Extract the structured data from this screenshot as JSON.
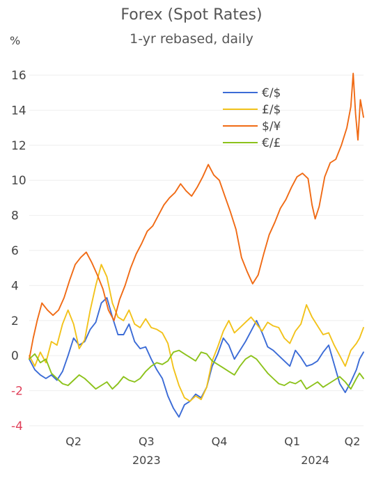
{
  "chart_data": {
    "type": "line",
    "title": "Forex (Spot Rates)",
    "subtitle": "1-yr rebased, daily",
    "ylabel": "%",
    "xlabel": "",
    "ylim": [
      -4,
      16.5
    ],
    "yticks": [
      -4,
      -2,
      0,
      2,
      4,
      6,
      8,
      10,
      12,
      14,
      16
    ],
    "xlim": [
      "2023-03-20",
      "2024-05-15"
    ],
    "xticks": [
      {
        "label": "Q2",
        "date": "2023-05-15"
      },
      {
        "label": "Q3",
        "date": "2023-08-15"
      },
      {
        "label": "Q4",
        "date": "2023-11-15"
      },
      {
        "label": "Q1",
        "date": "2024-02-15"
      },
      {
        "label": "Q2",
        "date": "2024-05-01"
      }
    ],
    "year_labels": [
      {
        "label": "2023",
        "date": "2023-08-15"
      },
      {
        "label": "2024",
        "date": "2024-03-15"
      }
    ],
    "grid": true,
    "legend_position": "top-right",
    "series": [
      {
        "name": "€/$",
        "color": "#3b6bd6",
        "points": [
          [
            "2023-03-20",
            -0.2
          ],
          [
            "2023-03-27",
            -0.8
          ],
          [
            "2023-04-03",
            -1.1
          ],
          [
            "2023-04-10",
            -1.3
          ],
          [
            "2023-04-17",
            -1.1
          ],
          [
            "2023-04-24",
            -1.4
          ],
          [
            "2023-05-01",
            -0.9
          ],
          [
            "2023-05-08",
            0.0
          ],
          [
            "2023-05-15",
            1.0
          ],
          [
            "2023-05-22",
            0.6
          ],
          [
            "2023-05-29",
            0.8
          ],
          [
            "2023-06-05",
            1.5
          ],
          [
            "2023-06-12",
            1.9
          ],
          [
            "2023-06-19",
            3.0
          ],
          [
            "2023-06-26",
            3.3
          ],
          [
            "2023-07-03",
            2.2
          ],
          [
            "2023-07-10",
            1.2
          ],
          [
            "2023-07-17",
            1.2
          ],
          [
            "2023-07-24",
            1.8
          ],
          [
            "2023-07-31",
            0.8
          ],
          [
            "2023-08-07",
            0.4
          ],
          [
            "2023-08-14",
            0.5
          ],
          [
            "2023-08-21",
            -0.2
          ],
          [
            "2023-08-28",
            -0.8
          ],
          [
            "2023-09-04",
            -1.3
          ],
          [
            "2023-09-11",
            -2.3
          ],
          [
            "2023-09-18",
            -3.0
          ],
          [
            "2023-09-25",
            -3.5
          ],
          [
            "2023-10-02",
            -2.8
          ],
          [
            "2023-10-09",
            -2.6
          ],
          [
            "2023-10-16",
            -2.2
          ],
          [
            "2023-10-23",
            -2.4
          ],
          [
            "2023-10-30",
            -1.8
          ],
          [
            "2023-11-06",
            -0.6
          ],
          [
            "2023-11-13",
            0.1
          ],
          [
            "2023-11-20",
            1.0
          ],
          [
            "2023-11-27",
            0.6
          ],
          [
            "2023-12-04",
            -0.2
          ],
          [
            "2023-12-11",
            0.3
          ],
          [
            "2023-12-18",
            0.8
          ],
          [
            "2023-12-25",
            1.4
          ],
          [
            "2024-01-01",
            2.0
          ],
          [
            "2024-01-08",
            1.3
          ],
          [
            "2024-01-15",
            0.5
          ],
          [
            "2024-01-22",
            0.3
          ],
          [
            "2024-01-29",
            0.0
          ],
          [
            "2024-02-05",
            -0.3
          ],
          [
            "2024-02-12",
            -0.6
          ],
          [
            "2024-02-19",
            0.3
          ],
          [
            "2024-02-26",
            -0.1
          ],
          [
            "2024-03-04",
            -0.6
          ],
          [
            "2024-03-11",
            -0.5
          ],
          [
            "2024-03-18",
            -0.3
          ],
          [
            "2024-03-25",
            0.2
          ],
          [
            "2024-04-01",
            0.6
          ],
          [
            "2024-04-08",
            -0.5
          ],
          [
            "2024-04-15",
            -1.6
          ],
          [
            "2024-04-22",
            -2.1
          ],
          [
            "2024-04-29",
            -1.5
          ],
          [
            "2024-05-06",
            -0.8
          ],
          [
            "2024-05-10",
            -0.2
          ],
          [
            "2024-05-15",
            0.2
          ]
        ]
      },
      {
        "name": "£/$",
        "color": "#f2c21a",
        "points": [
          [
            "2023-03-20",
            0.0
          ],
          [
            "2023-03-27",
            -0.6
          ],
          [
            "2023-04-03",
            0.2
          ],
          [
            "2023-04-10",
            -0.4
          ],
          [
            "2023-04-17",
            0.8
          ],
          [
            "2023-04-24",
            0.6
          ],
          [
            "2023-05-01",
            1.8
          ],
          [
            "2023-05-08",
            2.6
          ],
          [
            "2023-05-15",
            1.8
          ],
          [
            "2023-05-22",
            0.4
          ],
          [
            "2023-05-29",
            0.9
          ],
          [
            "2023-06-05",
            2.6
          ],
          [
            "2023-06-12",
            4.0
          ],
          [
            "2023-06-19",
            5.2
          ],
          [
            "2023-06-26",
            4.5
          ],
          [
            "2023-07-03",
            3.0
          ],
          [
            "2023-07-10",
            2.2
          ],
          [
            "2023-07-17",
            2.0
          ],
          [
            "2023-07-24",
            2.6
          ],
          [
            "2023-07-31",
            1.8
          ],
          [
            "2023-08-07",
            1.6
          ],
          [
            "2023-08-14",
            2.1
          ],
          [
            "2023-08-21",
            1.6
          ],
          [
            "2023-08-28",
            1.5
          ],
          [
            "2023-09-04",
            1.3
          ],
          [
            "2023-09-11",
            0.7
          ],
          [
            "2023-09-18",
            -0.7
          ],
          [
            "2023-09-25",
            -1.7
          ],
          [
            "2023-10-02",
            -2.4
          ],
          [
            "2023-10-09",
            -2.6
          ],
          [
            "2023-10-16",
            -2.3
          ],
          [
            "2023-10-23",
            -2.5
          ],
          [
            "2023-10-30",
            -1.8
          ],
          [
            "2023-11-06",
            -0.3
          ],
          [
            "2023-11-13",
            0.5
          ],
          [
            "2023-11-20",
            1.4
          ],
          [
            "2023-11-27",
            2.0
          ],
          [
            "2023-12-04",
            1.3
          ],
          [
            "2023-12-11",
            1.6
          ],
          [
            "2023-12-18",
            1.9
          ],
          [
            "2023-12-25",
            2.2
          ],
          [
            "2024-01-01",
            1.8
          ],
          [
            "2024-01-08",
            1.4
          ],
          [
            "2024-01-15",
            1.9
          ],
          [
            "2024-01-22",
            1.7
          ],
          [
            "2024-01-29",
            1.6
          ],
          [
            "2024-02-05",
            1.0
          ],
          [
            "2024-02-12",
            0.7
          ],
          [
            "2024-02-19",
            1.4
          ],
          [
            "2024-02-26",
            1.8
          ],
          [
            "2024-03-04",
            2.9
          ],
          [
            "2024-03-11",
            2.2
          ],
          [
            "2024-03-18",
            1.7
          ],
          [
            "2024-03-25",
            1.2
          ],
          [
            "2024-04-01",
            1.3
          ],
          [
            "2024-04-08",
            0.6
          ],
          [
            "2024-04-15",
            0.0
          ],
          [
            "2024-04-22",
            -0.6
          ],
          [
            "2024-04-29",
            0.3
          ],
          [
            "2024-05-06",
            0.7
          ],
          [
            "2024-05-10",
            1.0
          ],
          [
            "2024-05-15",
            1.6
          ]
        ]
      },
      {
        "name": "$/¥",
        "color": "#f06a14",
        "points": [
          [
            "2023-03-20",
            -0.2
          ],
          [
            "2023-03-25",
            1.0
          ],
          [
            "2023-03-30",
            2.0
          ],
          [
            "2023-04-05",
            3.0
          ],
          [
            "2023-04-12",
            2.6
          ],
          [
            "2023-04-19",
            2.3
          ],
          [
            "2023-04-26",
            2.6
          ],
          [
            "2023-05-03",
            3.3
          ],
          [
            "2023-05-10",
            4.3
          ],
          [
            "2023-05-17",
            5.2
          ],
          [
            "2023-05-24",
            5.6
          ],
          [
            "2023-05-31",
            5.9
          ],
          [
            "2023-06-07",
            5.3
          ],
          [
            "2023-06-14",
            4.6
          ],
          [
            "2023-06-21",
            3.8
          ],
          [
            "2023-06-28",
            2.6
          ],
          [
            "2023-07-05",
            2.0
          ],
          [
            "2023-07-12",
            3.2
          ],
          [
            "2023-07-19",
            4.0
          ],
          [
            "2023-07-26",
            5.0
          ],
          [
            "2023-08-02",
            5.8
          ],
          [
            "2023-08-09",
            6.4
          ],
          [
            "2023-08-16",
            7.1
          ],
          [
            "2023-08-23",
            7.4
          ],
          [
            "2023-08-30",
            8.0
          ],
          [
            "2023-09-06",
            8.6
          ],
          [
            "2023-09-13",
            9.0
          ],
          [
            "2023-09-20",
            9.3
          ],
          [
            "2023-09-27",
            9.8
          ],
          [
            "2023-10-04",
            9.4
          ],
          [
            "2023-10-11",
            9.1
          ],
          [
            "2023-10-18",
            9.6
          ],
          [
            "2023-10-25",
            10.2
          ],
          [
            "2023-11-01",
            10.9
          ],
          [
            "2023-11-08",
            10.3
          ],
          [
            "2023-11-15",
            10.0
          ],
          [
            "2023-11-22",
            9.1
          ],
          [
            "2023-11-29",
            8.2
          ],
          [
            "2023-12-06",
            7.2
          ],
          [
            "2023-12-13",
            5.6
          ],
          [
            "2023-12-20",
            4.8
          ],
          [
            "2023-12-27",
            4.1
          ],
          [
            "2024-01-03",
            4.6
          ],
          [
            "2024-01-10",
            5.8
          ],
          [
            "2024-01-17",
            6.9
          ],
          [
            "2024-01-24",
            7.6
          ],
          [
            "2024-01-31",
            8.4
          ],
          [
            "2024-02-07",
            8.9
          ],
          [
            "2024-02-14",
            9.6
          ],
          [
            "2024-02-21",
            10.2
          ],
          [
            "2024-02-28",
            10.4
          ],
          [
            "2024-03-06",
            10.1
          ],
          [
            "2024-03-11",
            8.6
          ],
          [
            "2024-03-15",
            7.8
          ],
          [
            "2024-03-20",
            8.5
          ],
          [
            "2024-03-27",
            10.2
          ],
          [
            "2024-04-03",
            11.0
          ],
          [
            "2024-04-10",
            11.2
          ],
          [
            "2024-04-17",
            12.0
          ],
          [
            "2024-04-24",
            13.0
          ],
          [
            "2024-04-29",
            14.2
          ],
          [
            "2024-05-02",
            16.1
          ],
          [
            "2024-05-05",
            13.8
          ],
          [
            "2024-05-08",
            12.3
          ],
          [
            "2024-05-11",
            14.6
          ],
          [
            "2024-05-15",
            13.6
          ]
        ]
      },
      {
        "name": "€/£",
        "color": "#8cc21b",
        "points": [
          [
            "2023-03-20",
            -0.2
          ],
          [
            "2023-03-27",
            0.1
          ],
          [
            "2023-04-03",
            -0.4
          ],
          [
            "2023-04-10",
            -0.2
          ],
          [
            "2023-04-17",
            -1.0
          ],
          [
            "2023-04-24",
            -1.3
          ],
          [
            "2023-05-01",
            -1.6
          ],
          [
            "2023-05-08",
            -1.7
          ],
          [
            "2023-05-15",
            -1.4
          ],
          [
            "2023-05-22",
            -1.1
          ],
          [
            "2023-05-29",
            -1.3
          ],
          [
            "2023-06-05",
            -1.6
          ],
          [
            "2023-06-12",
            -1.9
          ],
          [
            "2023-06-19",
            -1.7
          ],
          [
            "2023-06-26",
            -1.5
          ],
          [
            "2023-07-03",
            -1.9
          ],
          [
            "2023-07-10",
            -1.6
          ],
          [
            "2023-07-17",
            -1.2
          ],
          [
            "2023-07-24",
            -1.4
          ],
          [
            "2023-07-31",
            -1.5
          ],
          [
            "2023-08-07",
            -1.3
          ],
          [
            "2023-08-14",
            -0.9
          ],
          [
            "2023-08-21",
            -0.6
          ],
          [
            "2023-08-28",
            -0.4
          ],
          [
            "2023-09-04",
            -0.5
          ],
          [
            "2023-09-11",
            -0.3
          ],
          [
            "2023-09-18",
            0.2
          ],
          [
            "2023-09-25",
            0.3
          ],
          [
            "2023-10-02",
            0.1
          ],
          [
            "2023-10-09",
            -0.1
          ],
          [
            "2023-10-16",
            -0.3
          ],
          [
            "2023-10-23",
            0.2
          ],
          [
            "2023-10-30",
            0.1
          ],
          [
            "2023-11-06",
            -0.3
          ],
          [
            "2023-11-13",
            -0.5
          ],
          [
            "2023-11-20",
            -0.7
          ],
          [
            "2023-11-27",
            -0.9
          ],
          [
            "2023-12-04",
            -1.1
          ],
          [
            "2023-12-11",
            -0.6
          ],
          [
            "2023-12-18",
            -0.2
          ],
          [
            "2023-12-25",
            0.0
          ],
          [
            "2024-01-01",
            -0.2
          ],
          [
            "2024-01-08",
            -0.6
          ],
          [
            "2024-01-15",
            -1.0
          ],
          [
            "2024-01-22",
            -1.3
          ],
          [
            "2024-01-29",
            -1.6
          ],
          [
            "2024-02-05",
            -1.7
          ],
          [
            "2024-02-12",
            -1.5
          ],
          [
            "2024-02-19",
            -1.6
          ],
          [
            "2024-02-26",
            -1.4
          ],
          [
            "2024-03-04",
            -1.9
          ],
          [
            "2024-03-11",
            -1.7
          ],
          [
            "2024-03-18",
            -1.5
          ],
          [
            "2024-03-25",
            -1.8
          ],
          [
            "2024-04-01",
            -1.6
          ],
          [
            "2024-04-08",
            -1.4
          ],
          [
            "2024-04-15",
            -1.2
          ],
          [
            "2024-04-22",
            -1.5
          ],
          [
            "2024-04-29",
            -1.9
          ],
          [
            "2024-05-06",
            -1.3
          ],
          [
            "2024-05-10",
            -1.0
          ],
          [
            "2024-05-15",
            -1.3
          ]
        ]
      }
    ]
  }
}
